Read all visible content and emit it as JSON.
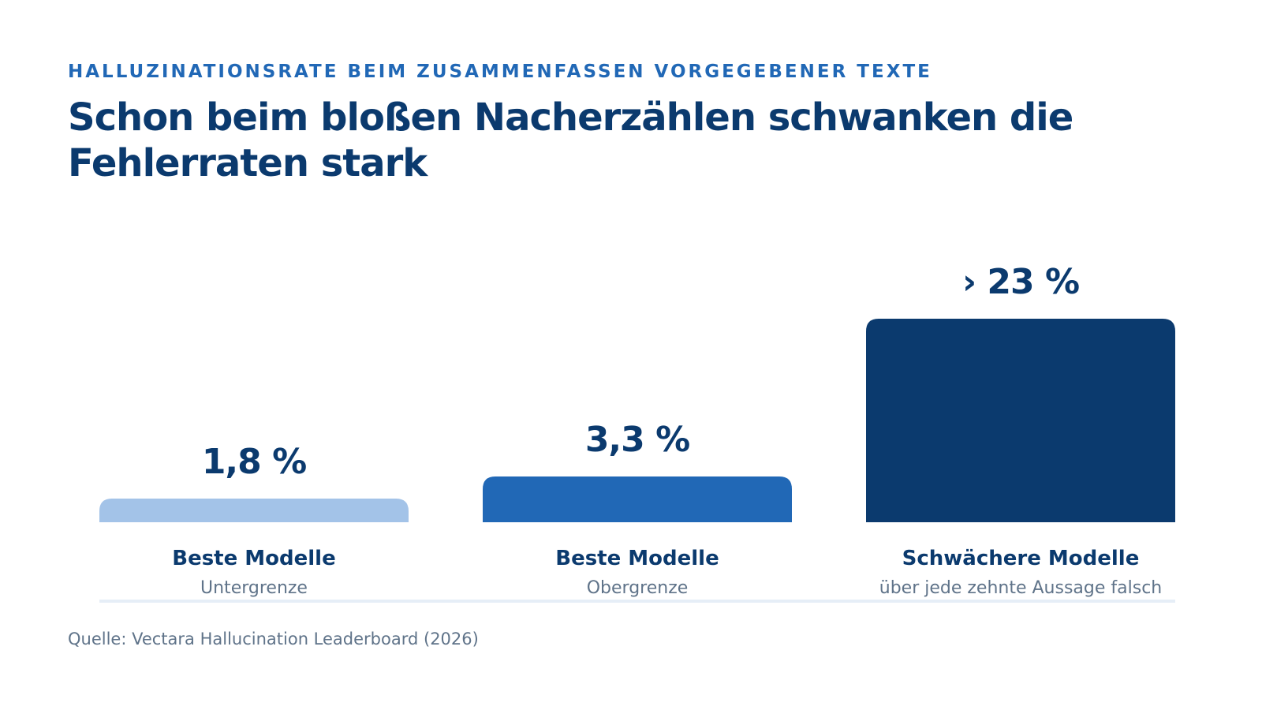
{
  "header": {
    "kicker": "HALLUZINATIONSRATE BEIM ZUSAMMENFASSEN VORGEGEBENER TEXTE",
    "title": "Schon beim bloßen Nacherzählen schwanken die Fehlerraten stark"
  },
  "chart_data": {
    "type": "bar",
    "categories": [
      "Beste Modelle",
      "Beste Modelle",
      "Schwächere Modelle"
    ],
    "subcategories": [
      "Untergrenze",
      "Obergrenze",
      "über jede zehnte Aussage falsch"
    ],
    "values": [
      1.8,
      3.3,
      23
    ],
    "value_labels": [
      "1,8 %",
      "3,3 %",
      "› 23 %"
    ],
    "colors": [
      "#a3c3e8",
      "#2168b6",
      "#0b3a6e"
    ],
    "ylim": [
      0,
      23
    ],
    "grid": false,
    "legend": "none"
  },
  "footer": {
    "source": "Quelle: Vectara Hallucination Leaderboard (2026)"
  },
  "colors": {
    "kicker": "#2168b6",
    "title": "#0b3a6e",
    "axis_line": "#e6eef7"
  }
}
